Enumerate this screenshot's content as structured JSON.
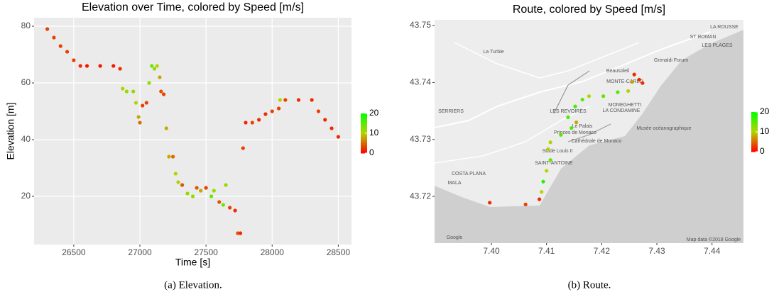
{
  "chart_data": [
    {
      "type": "scatter",
      "title": "Elevation over Time, colored by Speed [m/s]",
      "xlabel": "Time [s]",
      "ylabel": "Elevation [m]",
      "caption": "(a) Elevation.",
      "x": [
        26300,
        26350,
        26400,
        26450,
        26500,
        26550,
        26600,
        26700,
        26800,
        26850,
        26870,
        26900,
        26950,
        26970,
        26990,
        27000,
        27020,
        27050,
        27070,
        27090,
        27110,
        27130,
        27150,
        27160,
        27180,
        27200,
        27220,
        27250,
        27270,
        27290,
        27320,
        27360,
        27400,
        27430,
        27460,
        27500,
        27540,
        27560,
        27600,
        27630,
        27650,
        27680,
        27720,
        27740,
        27760,
        27780,
        27800,
        27850,
        27900,
        27950,
        28000,
        28050,
        28060,
        28100,
        28200,
        28300,
        28350,
        28400,
        28450,
        28500
      ],
      "values": [
        79,
        76,
        73,
        71,
        68,
        66,
        66,
        66,
        66,
        65,
        58,
        57,
        57,
        53,
        48,
        46,
        52,
        53,
        60,
        66,
        65,
        66,
        62,
        57,
        56,
        44,
        34,
        34,
        28,
        25,
        24,
        21,
        20,
        23,
        22,
        23,
        20,
        22,
        18,
        17,
        24,
        16,
        15,
        7,
        7,
        37,
        46,
        46,
        47,
        49,
        50,
        51,
        54,
        54,
        54,
        54,
        50,
        47,
        44,
        41
      ],
      "speed": [
        3,
        3,
        3,
        3,
        3,
        2,
        1,
        1,
        1,
        2,
        10,
        12,
        12,
        10,
        8,
        5,
        3,
        3,
        12,
        14,
        12,
        10,
        8,
        4,
        3,
        8,
        8,
        5,
        10,
        10,
        4,
        12,
        12,
        4,
        8,
        3,
        14,
        12,
        4,
        14,
        12,
        3,
        2,
        4,
        2,
        3,
        2,
        3,
        2,
        2,
        3,
        3,
        10,
        3,
        2,
        2,
        3,
        2,
        2,
        2
      ],
      "xlim": [
        26200,
        28600
      ],
      "ylim": [
        3,
        83
      ],
      "xticks": [
        26500,
        27000,
        27500,
        28000,
        28500
      ],
      "yticks": [
        20,
        40,
        60,
        80
      ],
      "grid": true,
      "colormap": [
        "#ff0000",
        "#b4d400",
        "#00ff00"
      ],
      "clim": [
        0,
        20
      ],
      "cticks": [
        0,
        10,
        20
      ]
    },
    {
      "type": "scatter",
      "title": "Route, colored by Speed [m/s]",
      "caption": "(b) Route.",
      "x": [
        7.3997,
        7.4062,
        7.4087,
        7.4091,
        7.4094,
        7.41,
        7.4107,
        7.4103,
        7.4107,
        7.4126,
        7.4145,
        7.4154,
        7.4139,
        7.4152,
        7.4165,
        7.4177,
        7.4203,
        7.4229,
        7.4248,
        7.4255,
        7.4259,
        7.4268,
        7.4274
      ],
      "values": [
        43.7189,
        43.7186,
        43.7195,
        43.7208,
        43.7226,
        43.7245,
        43.7264,
        43.7283,
        43.7295,
        43.7308,
        43.732,
        43.733,
        43.7339,
        43.7358,
        43.737,
        43.7376,
        43.7376,
        43.7383,
        43.7385,
        43.7401,
        43.7414,
        43.7405,
        43.7399
      ],
      "speed": [
        2,
        3,
        2,
        10,
        18,
        10,
        15,
        10,
        10,
        15,
        16,
        8,
        16,
        16,
        15,
        10,
        15,
        16,
        10,
        8,
        2,
        2,
        2
      ],
      "xlim": [
        7.3897,
        7.4457
      ],
      "ylim": [
        43.7118,
        43.751
      ],
      "xticks": [
        {
          "value": 7.4,
          "label": "7.40"
        },
        7.41,
        7.42,
        7.43,
        7.44
      ],
      "yticks": [
        43.72,
        43.73,
        43.74,
        43.75
      ],
      "colormap": [
        "#ff0000",
        "#b4d400",
        "#00ff00"
      ],
      "clim": [
        0,
        20
      ],
      "cticks": [
        0,
        10,
        20
      ],
      "map_labels": [
        "La Turbie",
        "LA ROUSSE",
        "ST ROMAN",
        "LES PLAGES",
        "Grimaldi Forum",
        "Beausoleil",
        "MONTE-CARLO",
        "MONEGHETTI",
        "LES REVOIRES",
        "LA CONDAMINE",
        "Le Palais",
        "Princes de Monaco",
        "Musée océanographique",
        "Cathédrale de Monaco",
        "Stade Louis II",
        "SAINT-ANTOINE",
        "COSTA PLANA",
        "MALA",
        "SERRIERS",
        "Google",
        "Map data ©2018 Google"
      ]
    }
  ]
}
